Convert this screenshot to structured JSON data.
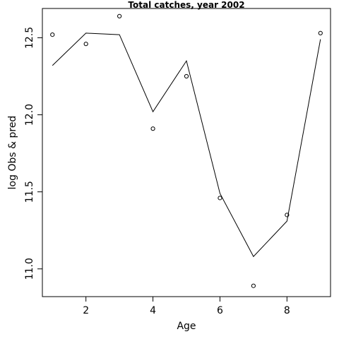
{
  "chart_data": {
    "type": "line",
    "title": "Total catches, year 2002",
    "xlabel": "Age",
    "ylabel": "log Obs & pred",
    "xlim": [
      0.7,
      9.3
    ],
    "ylim": [
      10.82,
      12.69
    ],
    "x_ticks": [
      2,
      4,
      6,
      8
    ],
    "y_ticks": [
      11.0,
      11.5,
      12.0,
      12.5
    ],
    "x_tick_labels": [
      "2",
      "4",
      "6",
      "8"
    ],
    "y_tick_labels": [
      "11.0",
      "11.5",
      "12.0",
      "12.5"
    ],
    "grid": false,
    "series": [
      {
        "style": "points",
        "x": [
          1,
          2,
          3,
          4,
          5,
          6,
          7,
          8,
          9
        ],
        "y": [
          12.52,
          12.46,
          12.64,
          11.91,
          12.25,
          11.46,
          10.89,
          11.35,
          12.53
        ]
      },
      {
        "style": "line",
        "x": [
          1,
          2,
          3,
          4,
          5,
          6,
          7,
          8,
          9
        ],
        "y": [
          12.32,
          12.53,
          12.52,
          12.02,
          12.35,
          11.49,
          11.08,
          11.31,
          12.49
        ]
      }
    ]
  }
}
